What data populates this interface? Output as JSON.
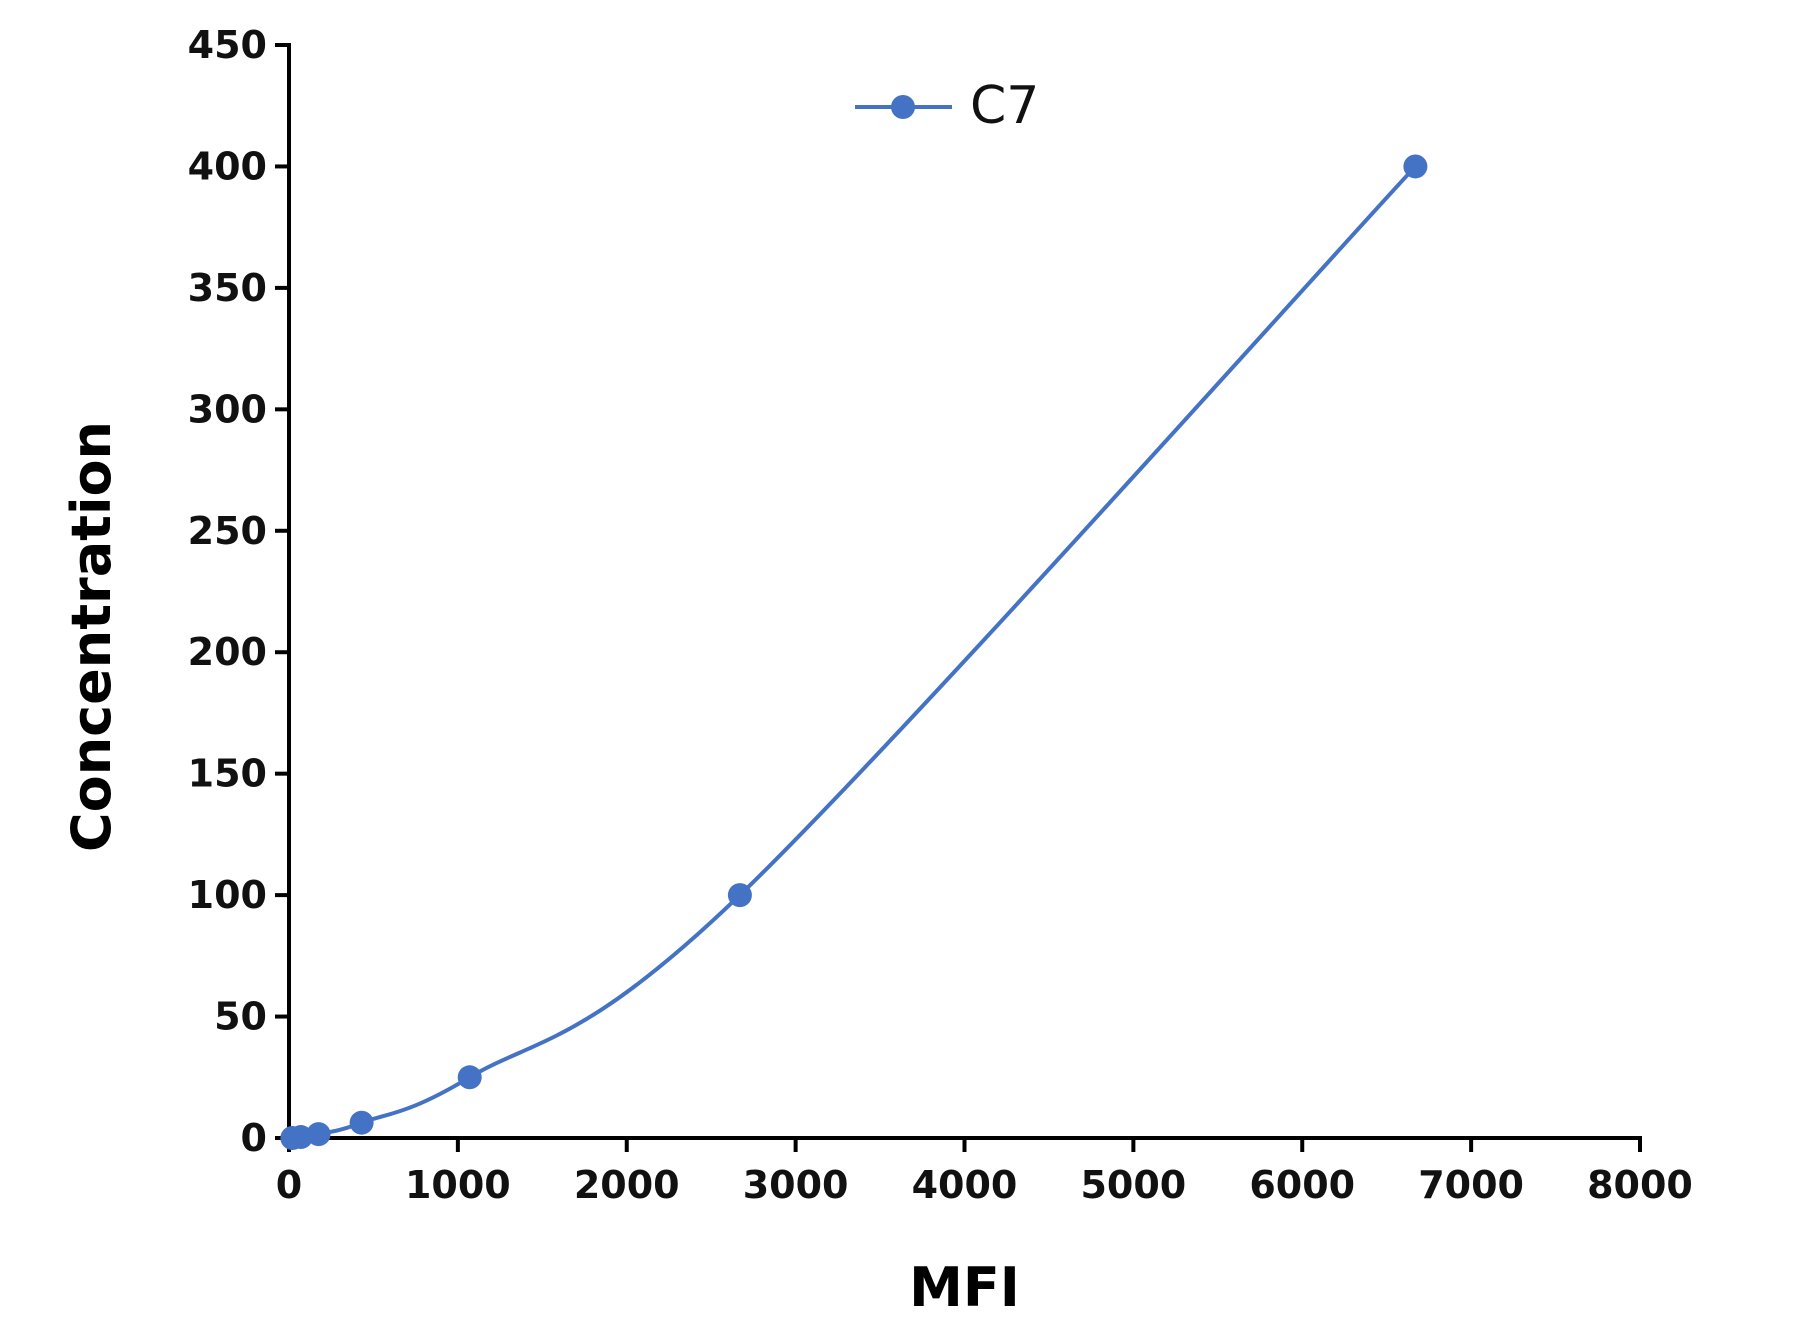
{
  "chart_data": {
    "type": "line",
    "xlabel": "MFI",
    "ylabel": "Concentration",
    "xlim": [
      0,
      8000
    ],
    "ylim": [
      0,
      450
    ],
    "xticks": [
      0,
      1000,
      2000,
      3000,
      4000,
      5000,
      6000,
      7000,
      8000
    ],
    "yticks": [
      0,
      50,
      100,
      150,
      200,
      250,
      300,
      350,
      400,
      450
    ],
    "grid": false,
    "legend": "top-center",
    "series": [
      {
        "name": "C7",
        "color": "#4472C4",
        "marker": "circle",
        "x": [
          20,
          70,
          175,
          430,
          1070,
          2670,
          6670
        ],
        "y": [
          0,
          0.4,
          1.6,
          6.3,
          25,
          100,
          400
        ]
      }
    ]
  }
}
